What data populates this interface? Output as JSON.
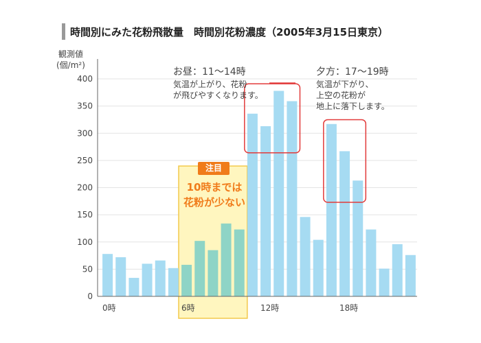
{
  "title": "時間別にみた花粉飛散量　時間別花粉濃度（2005年3月15日東京）",
  "chart_data": {
    "type": "bar",
    "ylabel_line1": "観測値",
    "ylabel_line2": "(個/m²)",
    "ylim": [
      0,
      400
    ],
    "yticks": [
      0,
      50,
      100,
      150,
      200,
      250,
      300,
      350,
      400
    ],
    "x_tick_labels": [
      {
        "index": 0,
        "label": "0時"
      },
      {
        "index": 6,
        "label": "6時"
      },
      {
        "index": 12,
        "label": "12時"
      },
      {
        "index": 18,
        "label": "18時"
      }
    ],
    "values": [
      78,
      72,
      34,
      60,
      66,
      52,
      58,
      102,
      85,
      134,
      123,
      336,
      313,
      378,
      359,
      146,
      104,
      317,
      267,
      213,
      123,
      51,
      96,
      76
    ],
    "highlight_range": [
      6,
      10
    ],
    "grid": true,
    "colors": {
      "bar": "#a6dbf2",
      "bar_highlight": "#8ed4c6",
      "highlight_fill": "#fff6bf",
      "highlight_border": "#f2c84b",
      "box": "#e23a3a",
      "focus": "#f07b1a"
    }
  },
  "annotations": {
    "midday": {
      "head": "お昼：11〜14時",
      "line1": "気温が上がり、花粉",
      "line2": "が飛びやすくなります。"
    },
    "evening": {
      "head": "夕方：17〜19時",
      "line1": "気温が下がり、",
      "line2": "上空の花粉が",
      "line3": "地上に落下します。"
    },
    "focus": {
      "tag": "注目",
      "line1": "10時までは",
      "line2": "花粉が少ない"
    }
  }
}
